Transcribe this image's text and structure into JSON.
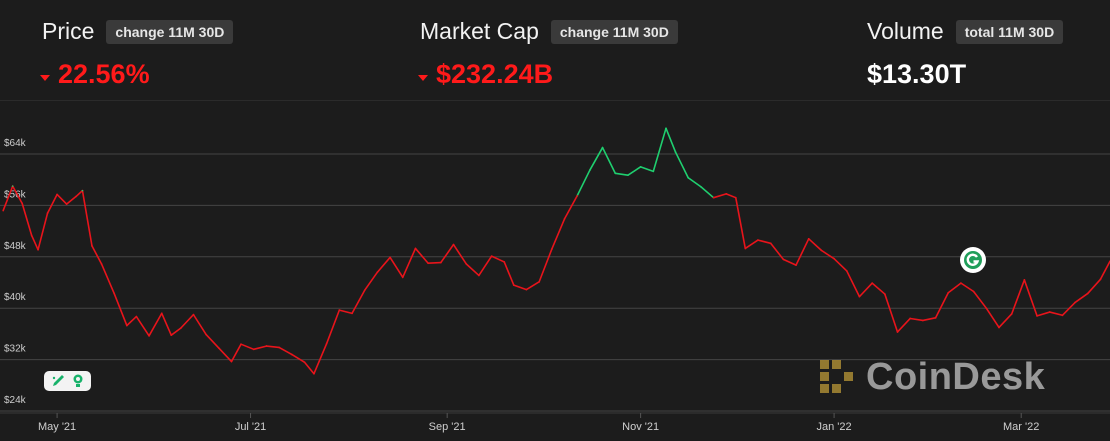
{
  "stats": {
    "price": {
      "label": "Price",
      "pill": "change 11M 30D",
      "value": "22.56%",
      "direction": "down"
    },
    "market_cap": {
      "label": "Market Cap",
      "pill": "change 11M 30D",
      "value": "$232.24B",
      "direction": "down"
    },
    "volume": {
      "label": "Volume",
      "pill": "total 11M 30D",
      "value": "$13.30T"
    }
  },
  "watermark": {
    "text": "CoinDesk"
  },
  "colors": {
    "up": "#1fcf6f",
    "down": "#e8141b",
    "background": "#1c1c1c",
    "grid": "#444444",
    "text": "#cfcfcf",
    "accent_gold": "#f5c542"
  },
  "chart_data": {
    "type": "line",
    "series": [
      {
        "color_rule": "green above $58k, red otherwise",
        "x": [
          "2021-04-14",
          "2021-04-17",
          "2021-04-20",
          "2021-04-23",
          "2021-04-25",
          "2021-04-28",
          "2021-05-01",
          "2021-05-04",
          "2021-05-07",
          "2021-05-09",
          "2021-05-12",
          "2021-05-15",
          "2021-05-19",
          "2021-05-23",
          "2021-05-26",
          "2021-05-30",
          "2021-06-03",
          "2021-06-06",
          "2021-06-09",
          "2021-06-13",
          "2021-06-17",
          "2021-06-21",
          "2021-06-25",
          "2021-06-28",
          "2021-07-02",
          "2021-07-06",
          "2021-07-10",
          "2021-07-14",
          "2021-07-18",
          "2021-07-21",
          "2021-07-25",
          "2021-07-29",
          "2021-08-02",
          "2021-08-06",
          "2021-08-10",
          "2021-08-14",
          "2021-08-18",
          "2021-08-22",
          "2021-08-26",
          "2021-08-30",
          "2021-09-03",
          "2021-09-07",
          "2021-09-11",
          "2021-09-15",
          "2021-09-19",
          "2021-09-22",
          "2021-09-26",
          "2021-09-30",
          "2021-10-04",
          "2021-10-08",
          "2021-10-12",
          "2021-10-16",
          "2021-10-20",
          "2021-10-24",
          "2021-10-28",
          "2021-11-01",
          "2021-11-05",
          "2021-11-09",
          "2021-11-12",
          "2021-11-16",
          "2021-11-20",
          "2021-11-24",
          "2021-11-28",
          "2021-12-01",
          "2021-12-04",
          "2021-12-08",
          "2021-12-12",
          "2021-12-16",
          "2021-12-20",
          "2021-12-24",
          "2021-12-28",
          "2022-01-01",
          "2022-01-05",
          "2022-01-09",
          "2022-01-13",
          "2022-01-17",
          "2022-01-21",
          "2022-01-25",
          "2022-01-29",
          "2022-02-02",
          "2022-02-06",
          "2022-02-10",
          "2022-02-14",
          "2022-02-18",
          "2022-02-22",
          "2022-02-26",
          "2022-03-02",
          "2022-03-06",
          "2022-03-10",
          "2022-03-14",
          "2022-03-18",
          "2022-03-22",
          "2022-03-26",
          "2022-03-29"
        ],
        "y": [
          55200,
          59000,
          56300,
          51300,
          49100,
          54800,
          57700,
          56200,
          57400,
          58300,
          49700,
          46900,
          42300,
          37300,
          38700,
          35700,
          39200,
          35800,
          36900,
          39000,
          35900,
          33800,
          31700,
          34400,
          33600,
          34100,
          33900,
          32800,
          31600,
          29800,
          34500,
          39700,
          39200,
          42800,
          45600,
          47900,
          44800,
          49300,
          47000,
          47100,
          49900,
          46900,
          45100,
          48100,
          47200,
          43600,
          42900,
          44100,
          49200,
          53900,
          57500,
          61500,
          65000,
          61000,
          60700,
          62000,
          61300,
          68000,
          64300,
          60300,
          58900,
          57200,
          57800,
          57200,
          49300,
          50600,
          50100,
          47600,
          46700,
          50800,
          49000,
          47700,
          45800,
          41800,
          43900,
          42200,
          36300,
          38400,
          38100,
          38500,
          42400,
          43900,
          42600,
          40000,
          37000,
          39100,
          44400,
          38800,
          39400,
          38900,
          40900,
          42300,
          44500,
          47300
        ],
        "name": ""
      }
    ],
    "x_tick_labels": [
      "May '21",
      "Jul '21",
      "Sep '21",
      "Nov '21",
      "Jan '22",
      "Mar '22"
    ],
    "x_tick_dates": [
      "2021-05-01",
      "2021-07-01",
      "2021-09-01",
      "2021-11-01",
      "2022-01-01",
      "2022-03-01"
    ],
    "y_ticks": [
      24000,
      32000,
      40000,
      48000,
      56000,
      64000
    ],
    "y_tick_labels": [
      "$24k",
      "$32k",
      "$40k",
      "$48k",
      "$56k",
      "$64k"
    ],
    "ylim": [
      24000,
      64000
    ],
    "xlim": [
      "2021-04-13",
      "2022-03-29"
    ],
    "threshold": 58000,
    "grid": true,
    "title": "",
    "xlabel": "",
    "ylabel": ""
  }
}
